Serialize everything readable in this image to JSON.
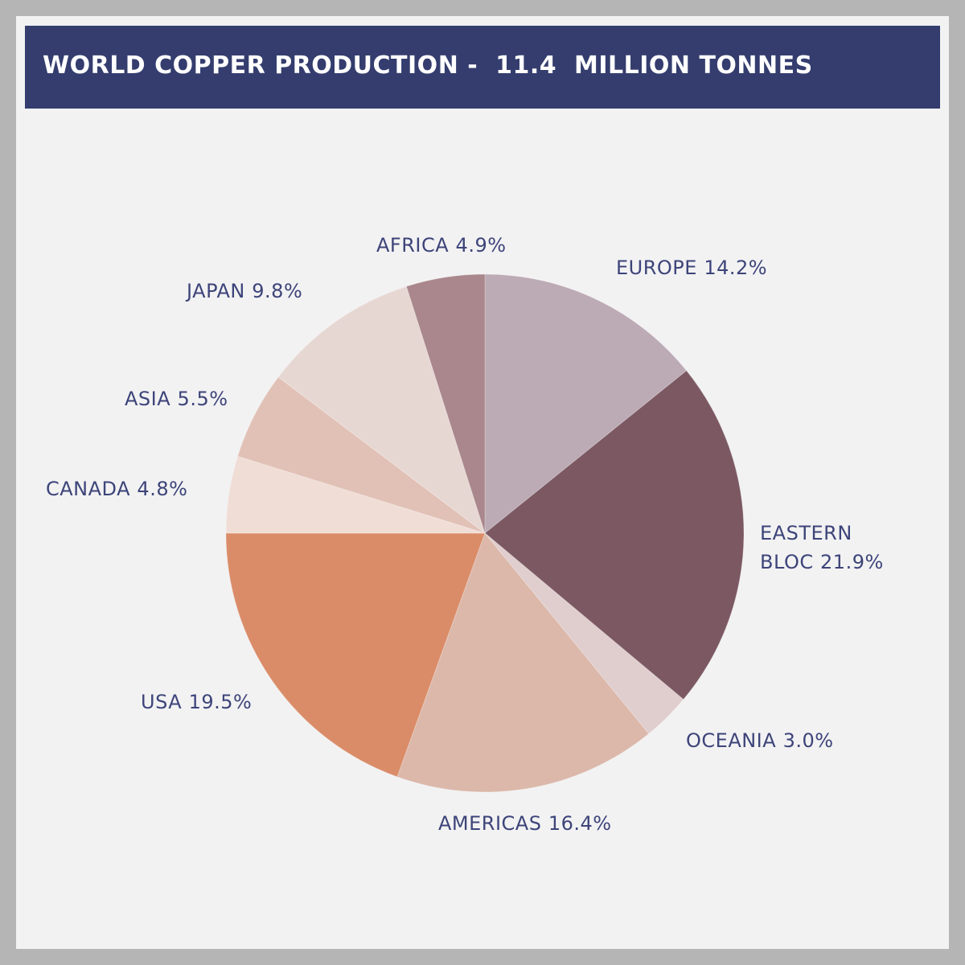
{
  "chart_data": {
    "type": "pie",
    "title": "WORLD COPPER PRODUCTION -  11.4  MILLION TONNES",
    "categories": [
      "EUROPE",
      "EASTERN BLOC",
      "OCEANIA",
      "AMERICAS",
      "USA",
      "CANADA",
      "ASIA",
      "JAPAN",
      "AFRICA"
    ],
    "values": [
      14.2,
      21.9,
      3.0,
      16.4,
      19.5,
      4.8,
      5.5,
      9.8,
      4.9
    ],
    "value_labels": [
      "14.2%",
      "21.9%",
      "3.0%",
      "16.4%",
      "19.5%",
      "4.8%",
      "5.5%",
      "9.8%",
      "4.9%"
    ],
    "colors": [
      "#bcaab4",
      "#7b5862",
      "#e0cdcd",
      "#dbb8aa",
      "#da8c68",
      "#f0ddd6",
      "#e1c1b6",
      "#e7d7d3",
      "#a9878c"
    ]
  }
}
